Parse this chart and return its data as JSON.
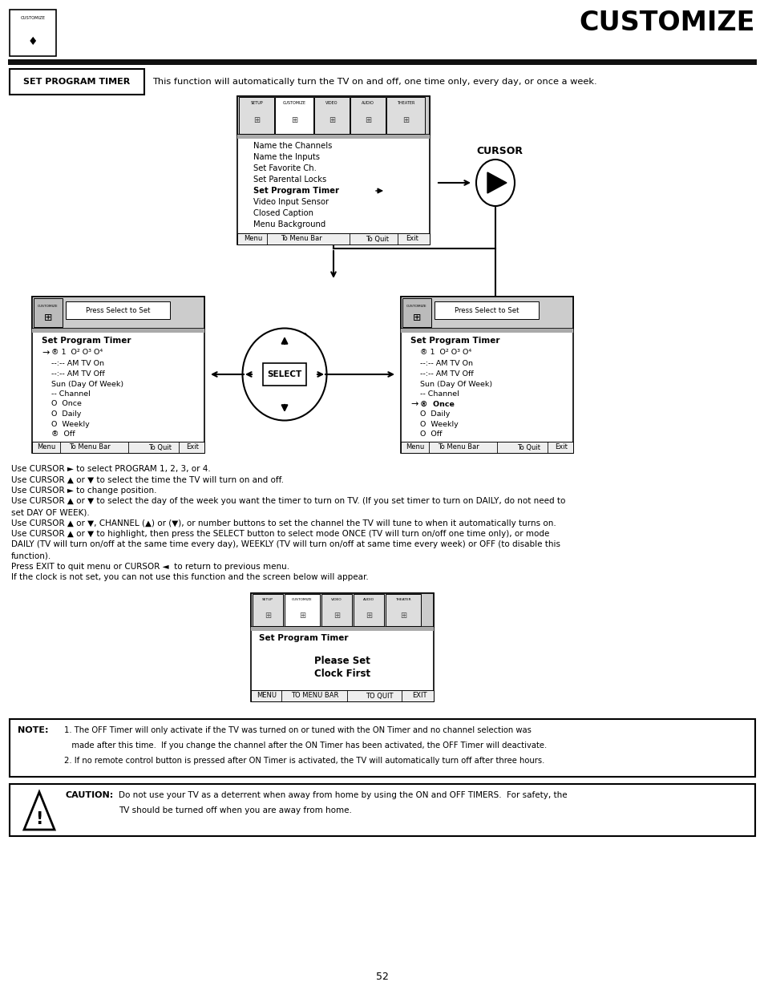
{
  "title": "CUSTOMIZE",
  "page_number": "52",
  "background_color": "#ffffff",
  "set_program_timer_label": "SET PROGRAM TIMER",
  "set_program_timer_desc": "This function will automatically turn the TV on and off, one time only, every day, or once a week.",
  "menu1_items": [
    "Name the Channels",
    "Name the Inputs",
    "Set Favorite Ch.",
    "Set Parental Locks",
    "Set Program Timer",
    "Video Input Sensor",
    "Closed Caption",
    "Menu Background"
  ],
  "menu1_bold_item": "Set Program Timer",
  "menu1_footer": [
    "Menu",
    "To Menu Bar",
    "To Quit",
    "Exit"
  ],
  "cursor_label": "CURSOR",
  "menu2_footer": [
    "Menu",
    "To Menu Bar",
    "To Quit",
    "Exit"
  ],
  "menu3_title": "Set Program Timer",
  "menu3_footer": [
    "MENU",
    "TO MENU BAR",
    "TO QUIT",
    "EXIT"
  ],
  "body_text_lines": [
    "Use CURSOR ► to select PROGRAM 1, 2, 3, or 4.",
    "Use CURSOR ▲ or ▼ to select the time the TV will turn on and off.",
    "Use CURSOR ► to change position.",
    "Use CURSOR ▲ or ▼ to select the day of the week you want the timer to turn on TV. (If you set timer to turn on DAILY, do not need to",
    "set DAY OF WEEK).",
    "Use CURSOR ▲ or ▼, CHANNEL (▲) or (▼), or number buttons to set the channel the TV will tune to when it automatically turns on.",
    "Use CURSOR ▲ or ▼ to highlight, then press the SELECT button to select mode ONCE (TV will turn on/off one time only), or mode",
    "DAILY (TV will turn on/off at the same time every day), WEEKLY (TV will turn on/off at same time every week) or OFF (to disable this",
    "function).",
    "Press EXIT to quit menu or CURSOR ◄  to return to previous menu.",
    "If the clock is not set, you can not use this function and the screen below will appear."
  ],
  "note_lines": [
    "1. The OFF Timer will only activate if the TV was turned on or tuned with the ON Timer and no channel selection was",
    "   made after this time.  If you change the channel after the ON Timer has been activated, the OFF Timer will deactivate.",
    "2. If no remote control button is pressed after ON Timer is activated, the TV will automatically turn off after three hours."
  ],
  "caution_lines": [
    "Do not use your TV as a deterrent when away from home by using the ON and OFF TIMERS.  For safety, the",
    "TV should be turned off when you are away from home."
  ]
}
